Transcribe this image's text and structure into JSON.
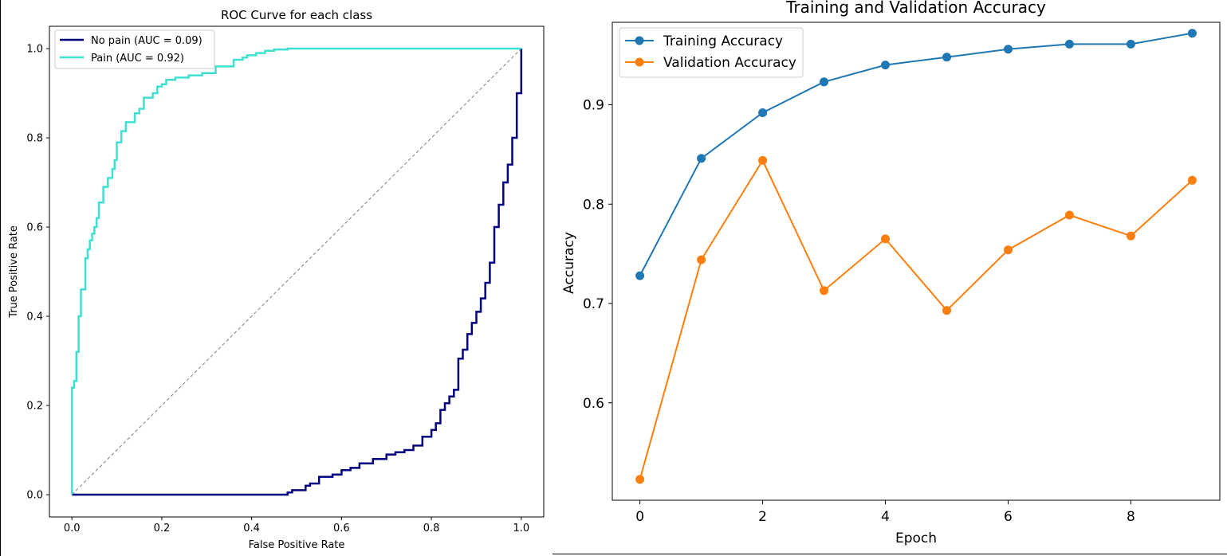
{
  "chart_data": [
    {
      "type": "line",
      "title": "ROC Curve for each class",
      "xlabel": "False Positive Rate",
      "ylabel": "True Positive Rate",
      "xlim": [
        -0.05,
        1.05
      ],
      "ylim": [
        -0.05,
        1.05
      ],
      "xticks": [
        "0.0",
        "0.2",
        "0.4",
        "0.6",
        "0.8",
        "1.0"
      ],
      "yticks": [
        "0.0",
        "0.2",
        "0.4",
        "0.6",
        "0.8",
        "1.0"
      ],
      "grid": false,
      "legend_position": "top-left",
      "diagonal": {
        "x": [
          0,
          1
        ],
        "y": [
          0,
          1
        ],
        "color": "#808080",
        "style": "dashed"
      },
      "series": [
        {
          "name": "No pain (AUC = 0.09)",
          "color": "#000080",
          "x": [
            0.0,
            0.48,
            0.48,
            0.49,
            0.49,
            0.52,
            0.52,
            0.53,
            0.53,
            0.55,
            0.55,
            0.58,
            0.58,
            0.6,
            0.6,
            0.62,
            0.62,
            0.64,
            0.64,
            0.67,
            0.67,
            0.7,
            0.7,
            0.72,
            0.72,
            0.74,
            0.74,
            0.76,
            0.76,
            0.78,
            0.78,
            0.8,
            0.8,
            0.81,
            0.81,
            0.82,
            0.82,
            0.83,
            0.83,
            0.84,
            0.84,
            0.85,
            0.85,
            0.86,
            0.86,
            0.87,
            0.87,
            0.88,
            0.88,
            0.89,
            0.89,
            0.9,
            0.9,
            0.91,
            0.91,
            0.92,
            0.92,
            0.93,
            0.93,
            0.94,
            0.94,
            0.95,
            0.95,
            0.96,
            0.96,
            0.97,
            0.97,
            0.98,
            0.98,
            0.99,
            0.99,
            1.0,
            1.0
          ],
          "y": [
            0.0,
            0.0,
            0.005,
            0.005,
            0.01,
            0.01,
            0.02,
            0.02,
            0.025,
            0.025,
            0.04,
            0.04,
            0.045,
            0.045,
            0.055,
            0.055,
            0.06,
            0.06,
            0.07,
            0.07,
            0.08,
            0.08,
            0.09,
            0.09,
            0.095,
            0.095,
            0.1,
            0.1,
            0.11,
            0.11,
            0.13,
            0.13,
            0.145,
            0.145,
            0.16,
            0.16,
            0.19,
            0.19,
            0.205,
            0.205,
            0.22,
            0.22,
            0.235,
            0.235,
            0.305,
            0.305,
            0.325,
            0.325,
            0.36,
            0.36,
            0.385,
            0.385,
            0.41,
            0.41,
            0.44,
            0.44,
            0.475,
            0.475,
            0.52,
            0.52,
            0.6,
            0.6,
            0.65,
            0.65,
            0.7,
            0.7,
            0.74,
            0.74,
            0.8,
            0.8,
            0.9,
            0.9,
            1.0
          ]
        },
        {
          "name": "Pain (AUC = 0.92)",
          "color": "#40e0d0",
          "x": [
            0.0,
            0.0,
            0.005,
            0.005,
            0.01,
            0.01,
            0.015,
            0.015,
            0.02,
            0.02,
            0.03,
            0.03,
            0.035,
            0.035,
            0.04,
            0.04,
            0.045,
            0.045,
            0.05,
            0.05,
            0.055,
            0.055,
            0.06,
            0.06,
            0.07,
            0.07,
            0.08,
            0.08,
            0.09,
            0.09,
            0.095,
            0.095,
            0.1,
            0.1,
            0.11,
            0.11,
            0.12,
            0.12,
            0.13,
            0.13,
            0.14,
            0.14,
            0.15,
            0.15,
            0.16,
            0.16,
            0.18,
            0.18,
            0.19,
            0.19,
            0.2,
            0.2,
            0.21,
            0.21,
            0.23,
            0.23,
            0.26,
            0.26,
            0.29,
            0.29,
            0.32,
            0.32,
            0.36,
            0.36,
            0.38,
            0.38,
            0.39,
            0.39,
            0.41,
            0.41,
            0.43,
            0.43,
            0.45,
            0.45,
            0.48,
            0.48,
            1.0
          ],
          "y": [
            0.0,
            0.24,
            0.24,
            0.255,
            0.255,
            0.32,
            0.32,
            0.4,
            0.4,
            0.46,
            0.46,
            0.53,
            0.53,
            0.55,
            0.55,
            0.57,
            0.57,
            0.585,
            0.585,
            0.6,
            0.6,
            0.62,
            0.62,
            0.655,
            0.655,
            0.69,
            0.69,
            0.71,
            0.71,
            0.73,
            0.73,
            0.75,
            0.75,
            0.79,
            0.79,
            0.815,
            0.815,
            0.835,
            0.835,
            0.835,
            0.835,
            0.855,
            0.855,
            0.865,
            0.865,
            0.89,
            0.89,
            0.9,
            0.9,
            0.915,
            0.915,
            0.92,
            0.92,
            0.93,
            0.93,
            0.935,
            0.935,
            0.94,
            0.94,
            0.945,
            0.945,
            0.96,
            0.96,
            0.975,
            0.975,
            0.98,
            0.98,
            0.985,
            0.985,
            0.99,
            0.99,
            0.995,
            0.995,
            0.998,
            0.998,
            1.0,
            1.0
          ]
        }
      ]
    },
    {
      "type": "line",
      "title": "Training and Validation Accuracy",
      "xlabel": "Epoch",
      "ylabel": "Accuracy",
      "xlim": [
        -0.45,
        9.45
      ],
      "ylim": [
        0.502,
        0.983
      ],
      "xticks": [
        0,
        2,
        4,
        6,
        8
      ],
      "yticks": [
        0.6,
        0.7,
        0.8,
        0.9
      ],
      "grid": false,
      "legend_position": "top-left",
      "x": [
        0,
        1,
        2,
        3,
        4,
        5,
        6,
        7,
        8,
        9
      ],
      "series": [
        {
          "name": "Training Accuracy",
          "color": "#1f77b4",
          "marker": "circle",
          "values": [
            0.728,
            0.846,
            0.892,
            0.923,
            0.94,
            0.948,
            0.956,
            0.961,
            0.961,
            0.972
          ]
        },
        {
          "name": "Validation Accuracy",
          "color": "#ff7f0e",
          "marker": "circle",
          "values": [
            0.523,
            0.744,
            0.844,
            0.713,
            0.765,
            0.693,
            0.754,
            0.789,
            0.768,
            0.824
          ]
        }
      ]
    }
  ]
}
